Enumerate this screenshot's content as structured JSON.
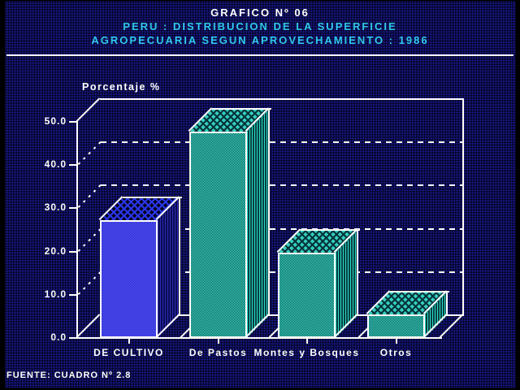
{
  "header": {
    "title_line1": "GRAFICO Nº 06",
    "title_line2": "PERU : DISTRIBUCION DE LA SUPERFICIE",
    "title_line3": "AGROPECUARIA SEGUN APROVECHAMIENTO : 1986"
  },
  "footer": {
    "source_label": "FUENTE: CUADRO Nº 2.8"
  },
  "chart_data": {
    "type": "bar",
    "style": "3d-perspective-bars",
    "title": "GRAFICO Nº 06 - PERU : DISTRIBUCION DE LA SUPERFICIE AGROPECUARIA SEGUN APROVECHAMIENTO : 1986",
    "categories": [
      "DE CULTIVO",
      "De Pastos",
      "Montes y Bosques",
      "Otros"
    ],
    "values": [
      27.2,
      47.7,
      19.8,
      5.5
    ],
    "xlabel": "",
    "ylabel": "Porcentaje %",
    "ylim": [
      0,
      50
    ],
    "yticks": [
      0,
      10,
      20,
      30,
      40,
      50
    ],
    "ytick_labels": [
      "0.0",
      "10.0",
      "20.0",
      "30.0",
      "40.0",
      "50.0"
    ],
    "grid": "dashed horizontal gridlines on back wall",
    "gridlines_at": [
      10,
      20,
      30,
      40
    ],
    "legend_position": "none",
    "bar_styles": [
      "blue",
      "teal",
      "teal",
      "teal"
    ]
  },
  "colors": {
    "background": "#000000",
    "background_dot": "#2b2bec",
    "title_primary": "#ffffff",
    "title_secondary": "#2fc9ea",
    "axis_and_outlines": "#ffffff",
    "bar_blue_front": "#3d3de0",
    "bar_teal_front": "#2fb3a4"
  }
}
